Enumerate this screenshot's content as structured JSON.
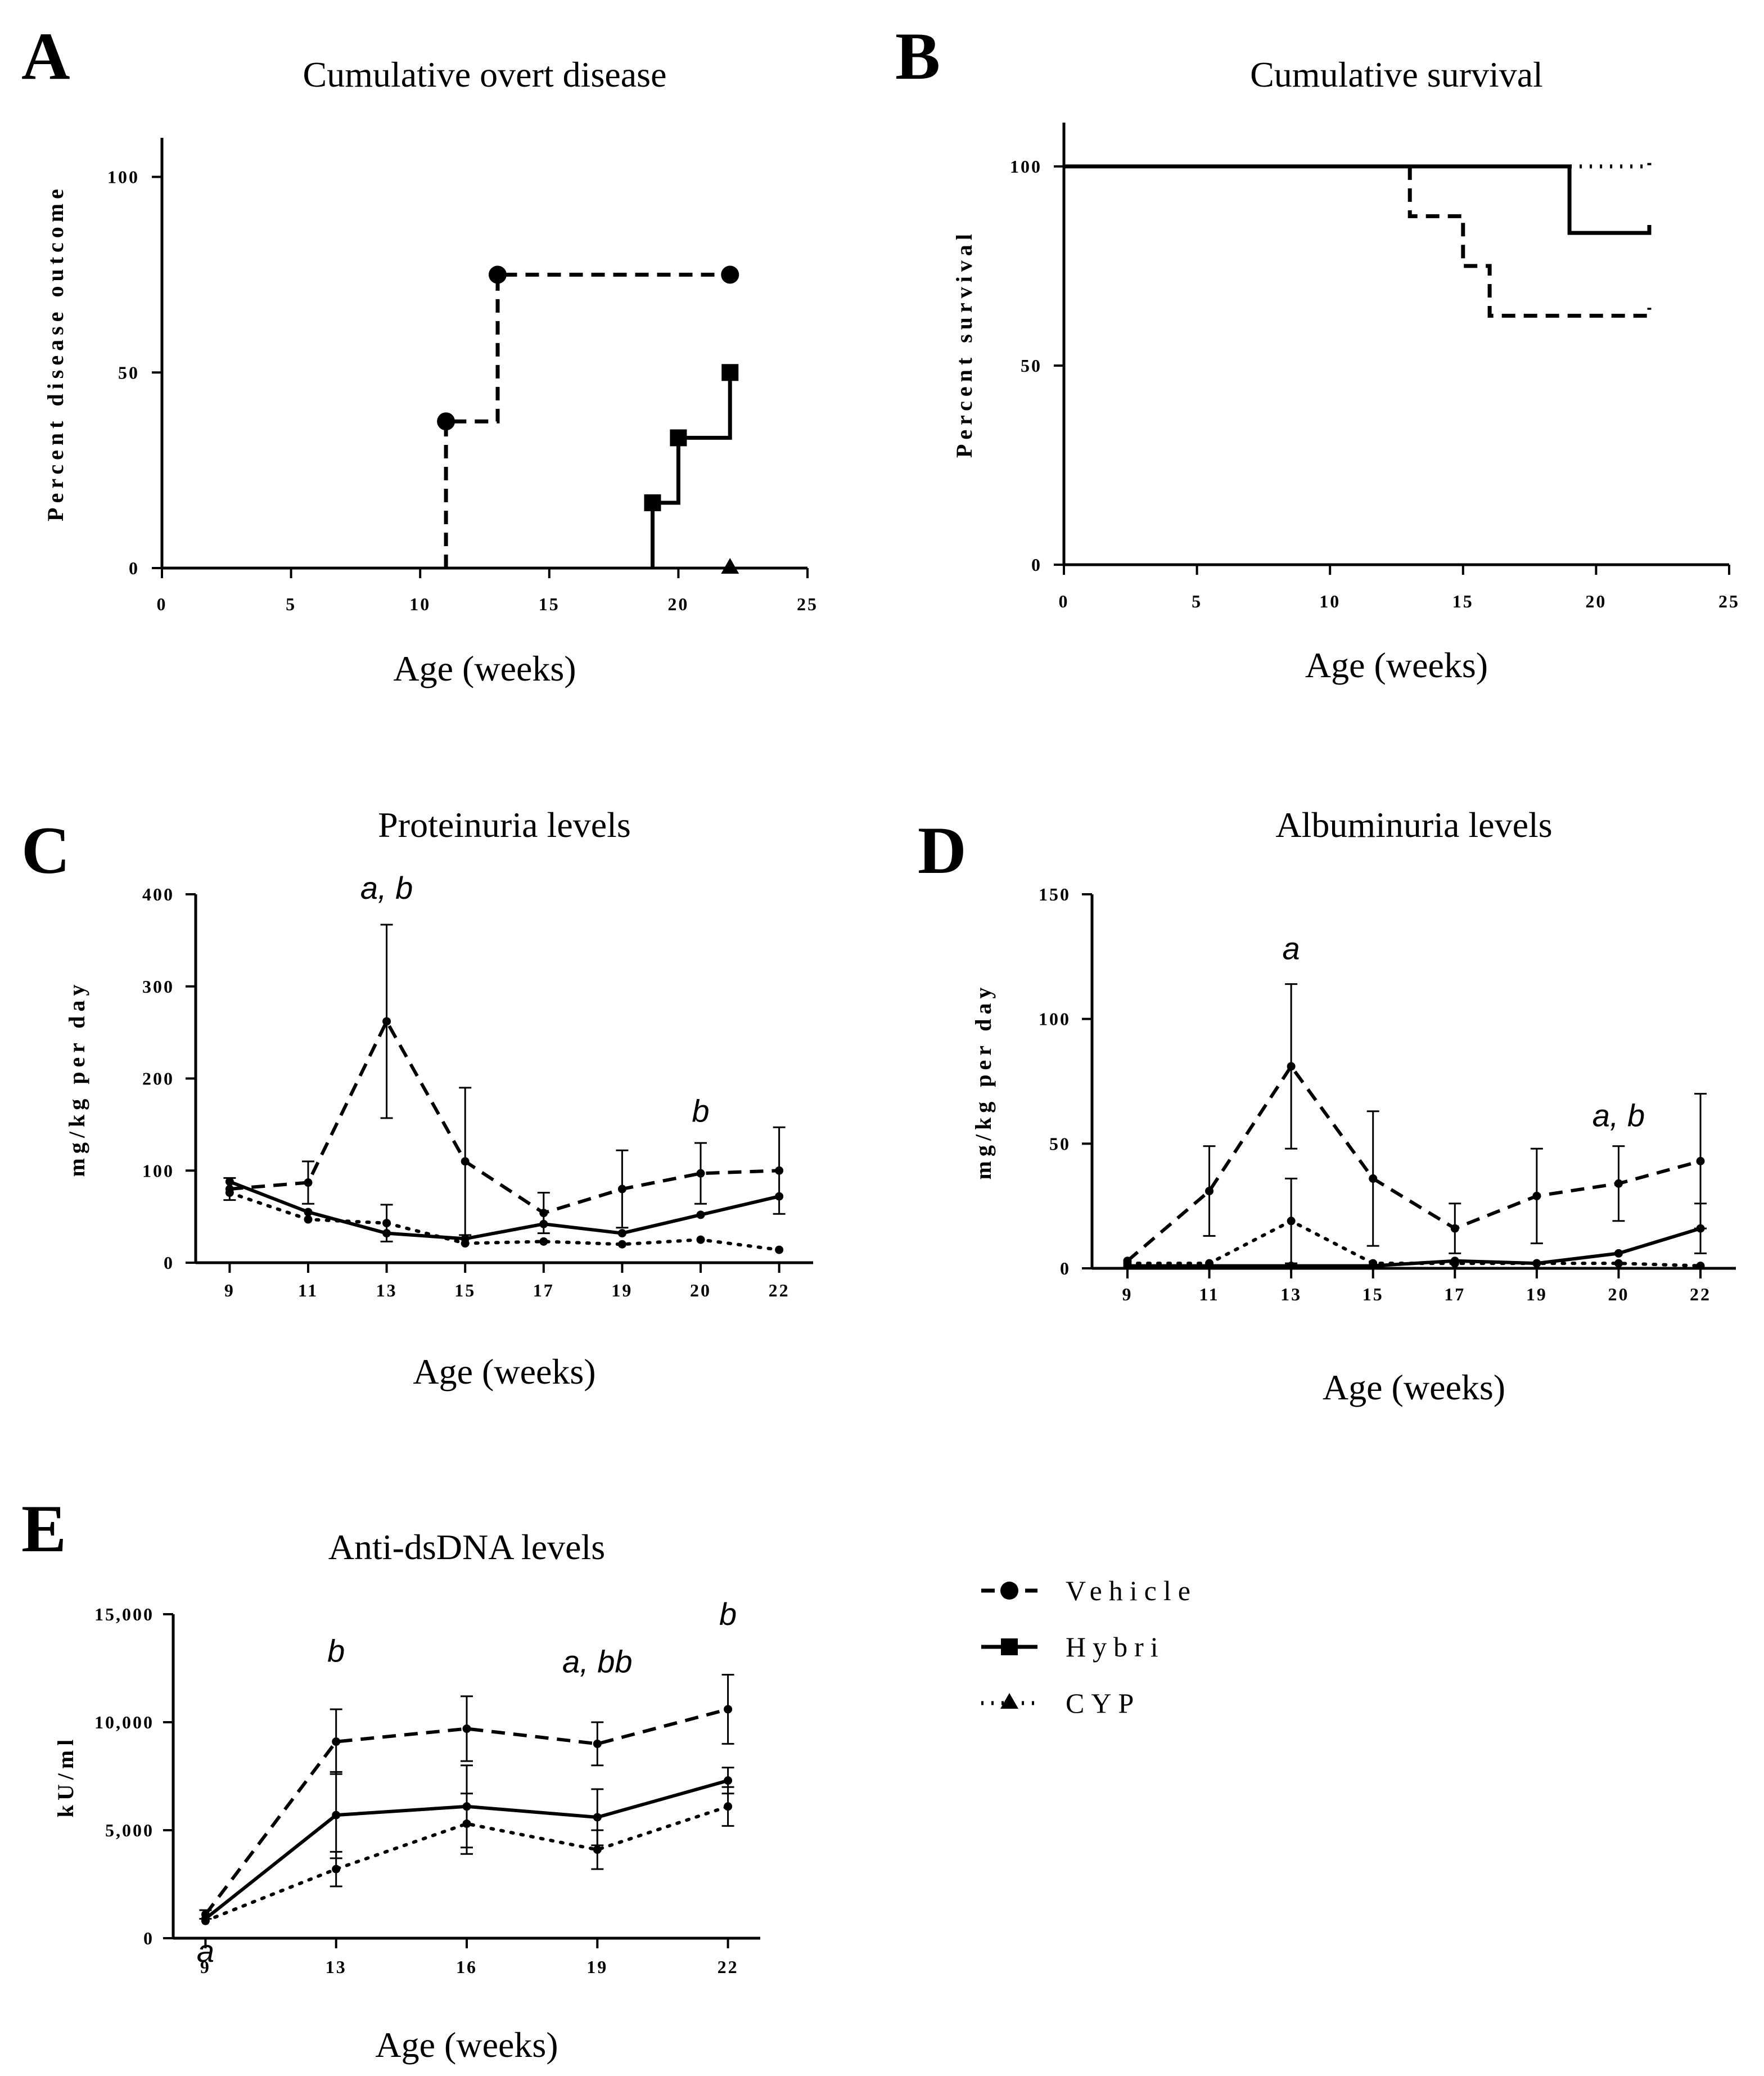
{
  "figure": {
    "panels": [
      {
        "letter": "A"
      },
      {
        "letter": "B"
      },
      {
        "letter": "C"
      },
      {
        "letter": "D"
      },
      {
        "letter": "E"
      }
    ],
    "legend": {
      "entries": [
        {
          "label": "Vehicle",
          "style": "dashed",
          "marker": "circle"
        },
        {
          "label": "Hybri",
          "style": "solid",
          "marker": "square"
        },
        {
          "label": "CYP",
          "style": "dotted",
          "marker": "triangle"
        }
      ]
    },
    "series_styles": {
      "Vehicle": {
        "dash": "dashed",
        "marker": "circle"
      },
      "Hybri": {
        "dash": "solid",
        "marker": "square"
      },
      "CYP": {
        "dash": "dotted",
        "marker": "triangle"
      }
    }
  },
  "chart_data": [
    {
      "panel": "A",
      "type": "line",
      "step": true,
      "title": "Cumulative overt disease",
      "xlabel": "Age (weeks)",
      "ylabel": "Percent disease outcome",
      "xlim": [
        0,
        25
      ],
      "ylim": [
        0,
        110
      ],
      "xticks": [
        0,
        5,
        10,
        15,
        20,
        25
      ],
      "yticks": [
        0,
        50,
        100
      ],
      "series": [
        {
          "name": "Vehicle",
          "points": [
            [
              11,
              0
            ],
            [
              11,
              37.5
            ],
            [
              13,
              37.5
            ],
            [
              13,
              75
            ],
            [
              22,
              75
            ]
          ],
          "markers": [
            [
              11,
              37.5
            ],
            [
              13,
              75
            ],
            [
              22,
              75
            ]
          ]
        },
        {
          "name": "Hybri",
          "points": [
            [
              19,
              0
            ],
            [
              19,
              16.7
            ],
            [
              20,
              16.7
            ],
            [
              20,
              33.3
            ],
            [
              22,
              33.3
            ],
            [
              22,
              50
            ]
          ],
          "markers": [
            [
              19,
              16.7
            ],
            [
              20,
              33.3
            ],
            [
              22,
              50
            ]
          ]
        },
        {
          "name": "CYP",
          "points": [
            [
              22,
              0
            ]
          ],
          "markers": [
            [
              22,
              0
            ]
          ]
        }
      ]
    },
    {
      "panel": "B",
      "type": "line",
      "step": true,
      "title": "Cumulative survival",
      "xlabel": "Age (weeks)",
      "ylabel": "Percent survival",
      "xlim": [
        0,
        25
      ],
      "ylim": [
        0,
        111
      ],
      "xticks": [
        0,
        5,
        10,
        15,
        20,
        25
      ],
      "yticks": [
        0,
        50,
        100
      ],
      "series": [
        {
          "name": "Vehicle",
          "points": [
            [
              13,
              100
            ],
            [
              13,
              87.5
            ],
            [
              15,
              87.5
            ],
            [
              15,
              75
            ],
            [
              16,
              75
            ],
            [
              16,
              62.5
            ],
            [
              22,
              62.5
            ],
            [
              22,
              64.5
            ]
          ]
        },
        {
          "name": "Hybri",
          "points": [
            [
              0,
              100
            ],
            [
              19,
              100
            ],
            [
              19,
              83.3
            ],
            [
              22,
              83.3
            ],
            [
              22,
              85.3
            ]
          ]
        },
        {
          "name": "CYP",
          "points": [
            [
              19,
              100
            ],
            [
              22,
              100
            ],
            [
              22,
              102
            ]
          ]
        }
      ]
    },
    {
      "panel": "C",
      "type": "line",
      "title": "Proteinuria levels",
      "xlabel": "Age (weeks)",
      "ylabel": "mg/kg per day",
      "categories": [
        "9",
        "11",
        "13",
        "15",
        "17",
        "19",
        "20",
        "22"
      ],
      "ylim": [
        0,
        400
      ],
      "yticks": [
        0,
        100,
        200,
        300,
        400
      ],
      "series": [
        {
          "name": "Vehicle",
          "values": [
            80,
            87,
            262,
            110,
            54,
            80,
            97,
            100
          ],
          "errors": [
            12,
            23,
            105,
            80,
            22,
            42,
            33,
            47
          ]
        },
        {
          "name": "Hybri",
          "values": [
            88,
            55,
            32,
            26,
            42,
            32,
            52,
            72
          ],
          "errors": [
            0,
            0,
            0,
            0,
            0,
            0,
            0,
            0
          ]
        },
        {
          "name": "CYP",
          "values": [
            76,
            47,
            43,
            21,
            23,
            20,
            25,
            14
          ],
          "errors": [
            0,
            0,
            20,
            0,
            0,
            0,
            0,
            0
          ]
        }
      ],
      "annotations": [
        {
          "text": "a, b",
          "category": "13",
          "y": 395
        },
        {
          "text": "b",
          "category": "20",
          "y": 153
        }
      ]
    },
    {
      "panel": "D",
      "type": "line",
      "title": "Albuminuria levels",
      "xlabel": "Age (weeks)",
      "ylabel": "mg/kg per day",
      "categories": [
        "9",
        "11",
        "13",
        "15",
        "17",
        "19",
        "20",
        "22"
      ],
      "ylim": [
        0,
        150
      ],
      "yticks": [
        0,
        50,
        100,
        150
      ],
      "series": [
        {
          "name": "Vehicle",
          "values": [
            3,
            31,
            81,
            36,
            16,
            29,
            34,
            43
          ],
          "errors": [
            0,
            18,
            33,
            27,
            10,
            19,
            15,
            27
          ]
        },
        {
          "name": "Hybri",
          "values": [
            1,
            1,
            1,
            1,
            3,
            2,
            6,
            16
          ],
          "errors": [
            0,
            0,
            0,
            0,
            0,
            0,
            0,
            10
          ]
        },
        {
          "name": "CYP",
          "values": [
            2,
            2,
            19,
            2,
            2,
            2,
            2,
            1
          ],
          "errors": [
            0,
            0,
            17,
            0,
            0,
            0,
            0,
            0
          ]
        }
      ],
      "annotations": [
        {
          "text": "a",
          "category": "13",
          "y": 124
        },
        {
          "text": "a, b",
          "category": "20",
          "y": 57
        }
      ]
    },
    {
      "panel": "E",
      "type": "line",
      "title": "Anti-dsDNA levels",
      "xlabel": "Age (weeks)",
      "ylabel": "kU/ml",
      "categories": [
        "9",
        "13",
        "16",
        "19",
        "22"
      ],
      "ylim": [
        0,
        15000
      ],
      "yticks": [
        0,
        5000,
        10000,
        15000
      ],
      "ytick_labels": [
        "0",
        "5,000",
        "10,000",
        "15,000"
      ],
      "series": [
        {
          "name": "Vehicle",
          "values": [
            1100,
            9100,
            9700,
            9000,
            10600
          ],
          "errors": [
            200,
            1500,
            1500,
            1000,
            1600
          ]
        },
        {
          "name": "Hybri",
          "values": [
            900,
            5700,
            6100,
            5600,
            7300
          ],
          "errors": [
            0,
            2000,
            1900,
            1300,
            600
          ]
        },
        {
          "name": "CYP",
          "values": [
            800,
            3200,
            5300,
            4100,
            6100
          ],
          "errors": [
            0,
            800,
            1400,
            900,
            900
          ]
        }
      ],
      "annotations": [
        {
          "text": "b",
          "category": "13",
          "y": 12800
        },
        {
          "text": "a, bb",
          "category": "19",
          "y": 12300
        },
        {
          "text": "b",
          "category": "22",
          "y": 14500
        },
        {
          "text": "a",
          "category": "9",
          "y": -1100
        }
      ]
    }
  ]
}
